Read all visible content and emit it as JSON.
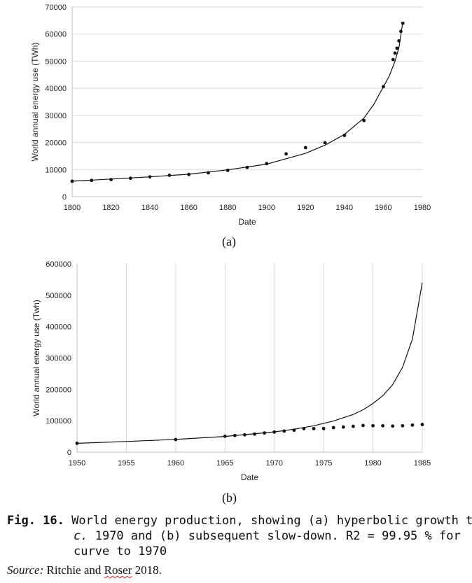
{
  "chart_data": [
    {
      "type": "scatter",
      "panel": "(a)",
      "xlabel": "Date",
      "ylabel": "World annual energy use (TWh)",
      "xlim": [
        1800,
        1980
      ],
      "ylim": [
        0,
        70000
      ],
      "x_ticks": [
        1800,
        1820,
        1840,
        1860,
        1880,
        1900,
        1920,
        1940,
        1960,
        1980
      ],
      "y_ticks": [
        0,
        10000,
        20000,
        30000,
        40000,
        50000,
        60000,
        70000
      ],
      "grid": "horizontal",
      "series": [
        {
          "kind": "points",
          "x": [
            1800,
            1810,
            1820,
            1830,
            1840,
            1850,
            1860,
            1870,
            1880,
            1890,
            1900,
            1910,
            1920,
            1930,
            1940,
            1950,
            1960,
            1965,
            1966,
            1967,
            1968,
            1969,
            1970
          ],
          "y": [
            5700,
            6000,
            6300,
            6800,
            7300,
            7900,
            8200,
            8800,
            9700,
            10800,
            12200,
            15800,
            18100,
            19900,
            22600,
            28100,
            40600,
            50600,
            53000,
            54800,
            57500,
            61000,
            64000
          ]
        },
        {
          "kind": "line",
          "x": [
            1800,
            1820,
            1840,
            1860,
            1880,
            1900,
            1910,
            1920,
            1930,
            1940,
            1950,
            1955,
            1960,
            1963,
            1966,
            1968,
            1970
          ],
          "y": [
            5700,
            6500,
            7300,
            8300,
            9900,
            12000,
            14000,
            16000,
            19000,
            23000,
            29000,
            34000,
            40500,
            44500,
            50000,
            55000,
            64500
          ]
        }
      ]
    },
    {
      "type": "scatter",
      "panel": "(b)",
      "xlabel": "Date",
      "ylabel": "World annual energy use (Twh)",
      "xlim": [
        1950,
        1985
      ],
      "ylim": [
        0,
        600000
      ],
      "x_ticks": [
        1950,
        1955,
        1960,
        1965,
        1970,
        1975,
        1980,
        1985
      ],
      "y_ticks": [
        0,
        100000,
        200000,
        300000,
        400000,
        500000,
        600000
      ],
      "grid": "vertical",
      "series": [
        {
          "kind": "points",
          "x": [
            1950,
            1960,
            1965,
            1966,
            1967,
            1968,
            1969,
            1970,
            1971,
            1972,
            1973,
            1974,
            1975,
            1976,
            1977,
            1978,
            1979,
            1980,
            1981,
            1982,
            1983,
            1984,
            1985
          ],
          "y": [
            28000,
            40000,
            50500,
            53000,
            55000,
            57500,
            61000,
            64000,
            67000,
            70000,
            75000,
            75000,
            75000,
            78000,
            80000,
            82000,
            85000,
            84000,
            84000,
            83000,
            84000,
            86000,
            88000
          ]
        },
        {
          "kind": "line",
          "x": [
            1950,
            1955,
            1960,
            1965,
            1970,
            1972,
            1974,
            1976,
            1978,
            1979,
            1980,
            1981,
            1982,
            1983,
            1984,
            1985
          ],
          "y": [
            28000,
            34000,
            40500,
            50000,
            64500,
            73000,
            84000,
            99000,
            120000,
            135000,
            155000,
            180000,
            215000,
            270000,
            360000,
            540000
          ]
        }
      ]
    }
  ],
  "panels": {
    "a": "(a)",
    "b": "(b)"
  },
  "caption": {
    "fig_label": "Fig. 16.",
    "line1": " World energy production, showing (a) hyperbolic growth to",
    "line2_c": "c.",
    "line2": " 1970 and (b) subsequent slow-down. R2 = 99.95 % for",
    "line3": "curve to 1970"
  },
  "source": {
    "label": "Source:",
    "author1": " Ritchie and ",
    "author2": "Roser",
    "year": " 2018."
  },
  "colors": {
    "line": "#111111",
    "grid": "#d9d9d9",
    "axis": "#bfbfbf"
  }
}
